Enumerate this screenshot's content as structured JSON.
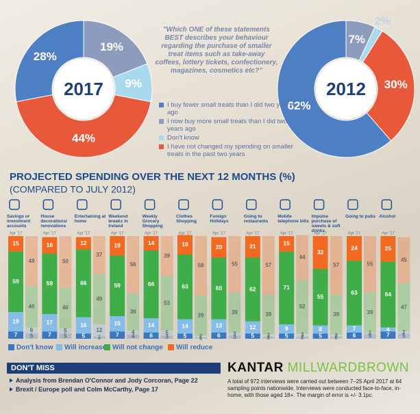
{
  "chart_data": [
    {
      "type": "pie",
      "title": "2017",
      "annotation": "\"Which ONE of these statements BEST describes your behaviour regarding the purchase of smaller treat items such as take-away coffees, lottery tickets, confectionery, magazines, cosmetics etc?\"",
      "categories": [
        "I buy fewer small treats than I did two years ago",
        "I now buy more small treats than I did two years ago",
        "Don't know",
        "I have not changed my spending on smaller treats in the past two years"
      ],
      "values": [
        28,
        19,
        9,
        44
      ],
      "value_labels": [
        "28%",
        "19%",
        "9%",
        "44%"
      ],
      "colors": [
        "#4f7fc3",
        "#8d9cbc",
        "#a9d9ec",
        "#e8593b"
      ]
    },
    {
      "type": "pie",
      "title": "2012",
      "values": [
        62,
        7,
        2,
        30
      ],
      "value_labels": [
        "62%",
        "7%",
        "2%",
        "30%"
      ],
      "colors": [
        "#4f7fc3",
        "#8d9cbc",
        "#a9d9ec",
        "#e8593b"
      ]
    },
    {
      "type": "bar",
      "stacked": true,
      "title": "PROJECTED SPENDING OVER THE NEXT 12 MONTHS (%)",
      "subtitle": "(COMPARED TO JULY 2012)",
      "period_label": "Apr '17",
      "categories": [
        "Savings or investment accounts",
        "House decorations/ renovations",
        "Entertaining at home",
        "Weekend breaks in Ireland",
        "Weekly Grocery Shopping",
        "Clothes Shopping",
        "Foreign Holidays",
        "Going to restaurants",
        "Mobile telephone bills",
        "Impulse purchase of sweets & soft drinks",
        "Going to pubs",
        "Alcohol"
      ],
      "ylim": [
        0,
        100
      ],
      "series": [
        {
          "name": "Don't know",
          "color": "#3b78c4",
          "values": [
            7,
            7,
            5,
            7,
            6,
            5,
            6,
            5,
            5,
            5,
            6,
            7
          ],
          "comparison_values": [
            5,
            5,
            2,
            4,
            3,
            1,
            3,
            2,
            2,
            2,
            5,
            5
          ]
        },
        {
          "name": "Will increase",
          "color": "#86bde8",
          "values": [
            19,
            17,
            16,
            15,
            14,
            14,
            13,
            12,
            9,
            8,
            7,
            4
          ],
          "comparison_values": [
            6,
            5,
            12,
            4,
            5,
            2,
            3,
            2,
            3,
            2,
            1,
            2
          ]
        },
        {
          "name": "Will not change",
          "color": "#3fae49",
          "values": [
            59,
            59,
            66,
            59,
            66,
            63,
            60,
            62,
            71,
            55,
            63,
            64
          ],
          "comparison_values": [
            40,
            40,
            49,
            36,
            53,
            39,
            39,
            39,
            52,
            39,
            39,
            47
          ]
        },
        {
          "name": "Will reduce",
          "color": "#f26a21",
          "values": [
            15,
            16,
            12,
            19,
            14,
            19,
            20,
            21,
            15,
            32,
            24,
            25
          ],
          "comparison_values": [
            49,
            50,
            37,
            56,
            39,
            58,
            55,
            57,
            44,
            57,
            55,
            45
          ]
        }
      ]
    }
  ],
  "footer": {
    "heading": "DON'T MISS",
    "items": [
      "Analysis from Brendan O'Connor and Jody Corcoran, Page 22",
      "Brexit / Europe poll and Colm McCarthy, Page 17"
    ],
    "logo": [
      "KANTAR",
      "MILLWARDBROWN"
    ],
    "note": "A total of 972 interviews were carried out between 7–25 April 2017 at 64 sampling points nationwide. Interviews were conducted face-to-face, in-home, with those aged 18+. The margin of error is +/- 3.1pc."
  }
}
